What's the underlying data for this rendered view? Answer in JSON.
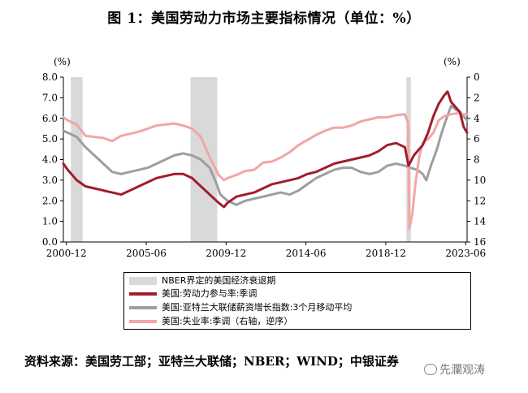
{
  "figure_title": "图 1：美国劳动力市场主要指标情况（单位：%）",
  "source_text": "资料来源：美国劳工部；亚特兰大联储；NBER；WIND；中银证券",
  "watermark_text": "先瀾观涛",
  "chart_data": {
    "type": "line",
    "left_axis": {
      "unit_label": "(%)",
      "range": [
        0.0,
        8.0
      ],
      "ticks": [
        "0.0",
        "1.0",
        "2.0",
        "3.0",
        "4.0",
        "5.0",
        "6.0",
        "7.0",
        "8.0"
      ]
    },
    "right_axis": {
      "range": [
        0,
        16
      ],
      "reversed": true,
      "ticks": [
        "0",
        "2",
        "4",
        "6",
        "8",
        "10",
        "12",
        "14",
        "16"
      ]
    },
    "x_axis": {
      "range": [
        2000.75,
        2023.5
      ],
      "ticks": [
        {
          "label": "2000-12",
          "value": 2000.92
        },
        {
          "label": "2005-06",
          "value": 2005.42
        },
        {
          "label": "2009-12",
          "value": 2009.92
        },
        {
          "label": "2014-06",
          "value": 2014.42
        },
        {
          "label": "2018-12",
          "value": 2018.92
        },
        {
          "label": "2023-06",
          "value": 2023.42
        }
      ]
    },
    "recessions": [
      [
        2001.17,
        2001.83
      ],
      [
        2007.92,
        2009.42
      ],
      [
        2020.08,
        2020.33
      ]
    ],
    "legend": {
      "recession": "NBER界定的美国经济衰退期",
      "lfpr": "美国:劳动力参与率:季调",
      "wage": "美国:亚特兰大联储薪资增长指数:3个月移动平均",
      "unemp": "美国:失业率:季调（右轴，逆序）"
    },
    "colors": {
      "lfpr": "#a11d2b",
      "wage": "#9e9e9e",
      "unemp": "#f2a6a6",
      "recession": "#d9d9d9"
    },
    "series": [
      {
        "key": "wage",
        "name": "美国:亚特兰大联储薪资增长指数:3个月移动平均",
        "axis": "left",
        "points": [
          [
            2000.75,
            5.4
          ],
          [
            2001.0,
            5.3
          ],
          [
            2001.5,
            5.1
          ],
          [
            2002.0,
            4.6
          ],
          [
            2002.5,
            4.2
          ],
          [
            2003.0,
            3.8
          ],
          [
            2003.5,
            3.4
          ],
          [
            2004.0,
            3.3
          ],
          [
            2004.5,
            3.4
          ],
          [
            2005.0,
            3.5
          ],
          [
            2005.5,
            3.6
          ],
          [
            2006.0,
            3.8
          ],
          [
            2006.5,
            4.0
          ],
          [
            2007.0,
            4.2
          ],
          [
            2007.5,
            4.3
          ],
          [
            2008.0,
            4.2
          ],
          [
            2008.5,
            4.0
          ],
          [
            2009.0,
            3.6
          ],
          [
            2009.3,
            3.0
          ],
          [
            2009.6,
            2.3
          ],
          [
            2010.0,
            2.0
          ],
          [
            2010.5,
            1.8
          ],
          [
            2011.0,
            2.0
          ],
          [
            2011.5,
            2.1
          ],
          [
            2012.0,
            2.2
          ],
          [
            2012.5,
            2.3
          ],
          [
            2013.0,
            2.4
          ],
          [
            2013.5,
            2.3
          ],
          [
            2014.0,
            2.5
          ],
          [
            2014.5,
            2.8
          ],
          [
            2015.0,
            3.1
          ],
          [
            2015.5,
            3.3
          ],
          [
            2016.0,
            3.5
          ],
          [
            2016.5,
            3.6
          ],
          [
            2017.0,
            3.6
          ],
          [
            2017.5,
            3.4
          ],
          [
            2018.0,
            3.3
          ],
          [
            2018.5,
            3.4
          ],
          [
            2019.0,
            3.7
          ],
          [
            2019.5,
            3.8
          ],
          [
            2020.0,
            3.7
          ],
          [
            2020.3,
            3.6
          ],
          [
            2020.7,
            3.5
          ],
          [
            2021.0,
            3.3
          ],
          [
            2021.2,
            3.0
          ],
          [
            2021.5,
            3.8
          ],
          [
            2021.8,
            4.5
          ],
          [
            2022.0,
            5.1
          ],
          [
            2022.3,
            5.9
          ],
          [
            2022.6,
            6.6
          ],
          [
            2022.9,
            6.4
          ],
          [
            2023.1,
            6.3
          ],
          [
            2023.3,
            6.1
          ],
          [
            2023.5,
            5.9
          ]
        ]
      },
      {
        "key": "unemp",
        "name": "美国:失业率:季调（右轴，逆序）",
        "axis": "right",
        "points": [
          [
            2000.75,
            3.9
          ],
          [
            2001.0,
            4.2
          ],
          [
            2001.5,
            4.6
          ],
          [
            2002.0,
            5.7
          ],
          [
            2002.5,
            5.8
          ],
          [
            2003.0,
            5.9
          ],
          [
            2003.5,
            6.2
          ],
          [
            2004.0,
            5.7
          ],
          [
            2004.5,
            5.5
          ],
          [
            2005.0,
            5.3
          ],
          [
            2005.5,
            5.0
          ],
          [
            2006.0,
            4.7
          ],
          [
            2006.5,
            4.6
          ],
          [
            2007.0,
            4.5
          ],
          [
            2007.5,
            4.7
          ],
          [
            2008.0,
            5.0
          ],
          [
            2008.5,
            5.8
          ],
          [
            2009.0,
            7.8
          ],
          [
            2009.5,
            9.5
          ],
          [
            2009.8,
            10.0
          ],
          [
            2010.0,
            9.8
          ],
          [
            2010.5,
            9.5
          ],
          [
            2011.0,
            9.1
          ],
          [
            2011.5,
            9.0
          ],
          [
            2012.0,
            8.3
          ],
          [
            2012.5,
            8.2
          ],
          [
            2013.0,
            7.8
          ],
          [
            2013.5,
            7.3
          ],
          [
            2014.0,
            6.6
          ],
          [
            2014.5,
            6.1
          ],
          [
            2015.0,
            5.6
          ],
          [
            2015.5,
            5.2
          ],
          [
            2016.0,
            4.9
          ],
          [
            2016.5,
            4.9
          ],
          [
            2017.0,
            4.7
          ],
          [
            2017.5,
            4.3
          ],
          [
            2018.0,
            4.1
          ],
          [
            2018.5,
            3.9
          ],
          [
            2019.0,
            3.9
          ],
          [
            2019.5,
            3.7
          ],
          [
            2020.0,
            3.6
          ],
          [
            2020.17,
            4.4
          ],
          [
            2020.25,
            14.7
          ],
          [
            2020.42,
            13.2
          ],
          [
            2020.6,
            10.2
          ],
          [
            2020.8,
            7.8
          ],
          [
            2021.0,
            6.4
          ],
          [
            2021.3,
            6.0
          ],
          [
            2021.6,
            5.4
          ],
          [
            2021.9,
            4.2
          ],
          [
            2022.2,
            3.8
          ],
          [
            2022.6,
            3.6
          ],
          [
            2023.0,
            3.5
          ],
          [
            2023.3,
            3.6
          ],
          [
            2023.5,
            3.6
          ]
        ]
      },
      {
        "key": "lfpr",
        "name": "美国:劳动力参与率:季调",
        "axis": "left",
        "points": [
          [
            2000.75,
            3.8
          ],
          [
            2001.0,
            3.5
          ],
          [
            2001.5,
            3.0
          ],
          [
            2002.0,
            2.7
          ],
          [
            2002.5,
            2.6
          ],
          [
            2003.0,
            2.5
          ],
          [
            2003.5,
            2.4
          ],
          [
            2004.0,
            2.3
          ],
          [
            2004.5,
            2.5
          ],
          [
            2005.0,
            2.7
          ],
          [
            2005.5,
            2.9
          ],
          [
            2006.0,
            3.1
          ],
          [
            2006.5,
            3.2
          ],
          [
            2007.0,
            3.3
          ],
          [
            2007.5,
            3.3
          ],
          [
            2008.0,
            3.1
          ],
          [
            2008.5,
            2.7
          ],
          [
            2009.0,
            2.3
          ],
          [
            2009.5,
            1.9
          ],
          [
            2009.8,
            1.7
          ],
          [
            2010.0,
            1.9
          ],
          [
            2010.5,
            2.2
          ],
          [
            2011.0,
            2.3
          ],
          [
            2011.5,
            2.4
          ],
          [
            2012.0,
            2.6
          ],
          [
            2012.5,
            2.8
          ],
          [
            2013.0,
            2.9
          ],
          [
            2013.5,
            3.0
          ],
          [
            2014.0,
            3.1
          ],
          [
            2014.5,
            3.3
          ],
          [
            2015.0,
            3.4
          ],
          [
            2015.5,
            3.6
          ],
          [
            2016.0,
            3.8
          ],
          [
            2016.5,
            3.9
          ],
          [
            2017.0,
            4.0
          ],
          [
            2017.5,
            4.1
          ],
          [
            2018.0,
            4.2
          ],
          [
            2018.5,
            4.4
          ],
          [
            2019.0,
            4.7
          ],
          [
            2019.5,
            4.8
          ],
          [
            2020.0,
            4.6
          ],
          [
            2020.2,
            3.7
          ],
          [
            2020.5,
            4.2
          ],
          [
            2021.0,
            4.7
          ],
          [
            2021.3,
            5.3
          ],
          [
            2021.6,
            6.1
          ],
          [
            2021.9,
            6.7
          ],
          [
            2022.2,
            7.1
          ],
          [
            2022.4,
            7.3
          ],
          [
            2022.6,
            6.8
          ],
          [
            2022.9,
            6.5
          ],
          [
            2023.1,
            6.3
          ],
          [
            2023.3,
            5.6
          ],
          [
            2023.5,
            5.3
          ]
        ]
      }
    ]
  }
}
